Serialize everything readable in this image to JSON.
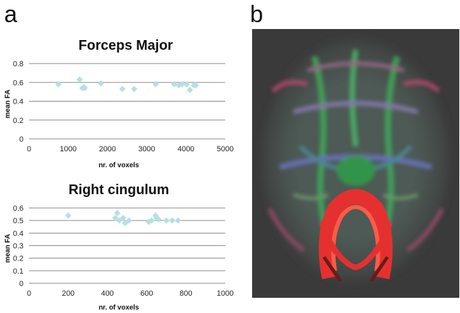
{
  "panels": {
    "a_label": "a",
    "b_label": "b"
  },
  "colors": {
    "marker": "#b7dfe3",
    "background_dark": "#3a3a3a",
    "tract": "#e53030"
  },
  "chart_data": [
    {
      "type": "scatter",
      "title": "Forceps Major",
      "xlabel": "nr. of voxels",
      "ylabel": "mean FA",
      "xlim": [
        0,
        5000
      ],
      "ylim": [
        0,
        0.8
      ],
      "xticks": [
        "0",
        "1000",
        "2000",
        "3000",
        "4000",
        "5000"
      ],
      "yticks": [
        "0",
        "0.2",
        "0.4",
        "0.6",
        "0.8"
      ],
      "grid": true,
      "points": [
        {
          "x": 750,
          "y": 0.58
        },
        {
          "x": 1290,
          "y": 0.63
        },
        {
          "x": 1360,
          "y": 0.54
        },
        {
          "x": 1400,
          "y": 0.55
        },
        {
          "x": 1420,
          "y": 0.54
        },
        {
          "x": 1830,
          "y": 0.59
        },
        {
          "x": 2380,
          "y": 0.53
        },
        {
          "x": 2680,
          "y": 0.53
        },
        {
          "x": 3230,
          "y": 0.58
        },
        {
          "x": 3700,
          "y": 0.58
        },
        {
          "x": 3820,
          "y": 0.57
        },
        {
          "x": 3900,
          "y": 0.58
        },
        {
          "x": 4020,
          "y": 0.58
        },
        {
          "x": 4100,
          "y": 0.52
        },
        {
          "x": 4200,
          "y": 0.57
        },
        {
          "x": 4250,
          "y": 0.57
        }
      ]
    },
    {
      "type": "scatter",
      "title": "Right cingulum",
      "xlabel": "nr. of voxels",
      "ylabel": "mean FA",
      "xlim": [
        0,
        1000
      ],
      "ylim": [
        0,
        0.6
      ],
      "xticks": [
        "0",
        "200",
        "400",
        "600",
        "800",
        "1000"
      ],
      "yticks": [
        "0",
        "0.1",
        "0.2",
        "0.3",
        "0.4",
        "0.5",
        "0.6"
      ],
      "grid": true,
      "points": [
        {
          "x": 200,
          "y": 0.54
        },
        {
          "x": 440,
          "y": 0.52
        },
        {
          "x": 450,
          "y": 0.56
        },
        {
          "x": 460,
          "y": 0.5
        },
        {
          "x": 480,
          "y": 0.52
        },
        {
          "x": 490,
          "y": 0.48
        },
        {
          "x": 510,
          "y": 0.5
        },
        {
          "x": 610,
          "y": 0.49
        },
        {
          "x": 625,
          "y": 0.5
        },
        {
          "x": 645,
          "y": 0.54
        },
        {
          "x": 650,
          "y": 0.52
        },
        {
          "x": 660,
          "y": 0.51
        },
        {
          "x": 700,
          "y": 0.5
        },
        {
          "x": 730,
          "y": 0.5
        },
        {
          "x": 760,
          "y": 0.5
        }
      ]
    }
  ]
}
